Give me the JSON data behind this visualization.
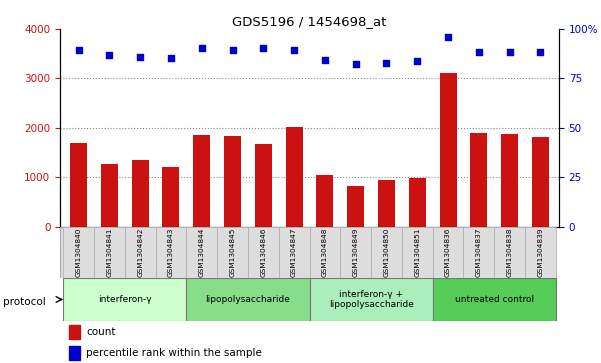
{
  "title": "GDS5196 / 1454698_at",
  "samples": [
    "GSM1304840",
    "GSM1304841",
    "GSM1304842",
    "GSM1304843",
    "GSM1304844",
    "GSM1304845",
    "GSM1304846",
    "GSM1304847",
    "GSM1304848",
    "GSM1304849",
    "GSM1304850",
    "GSM1304851",
    "GSM1304836",
    "GSM1304837",
    "GSM1304838",
    "GSM1304839"
  ],
  "counts": [
    1700,
    1270,
    1360,
    1220,
    1860,
    1840,
    1680,
    2010,
    1040,
    830,
    950,
    990,
    3110,
    1900,
    1880,
    1820
  ],
  "percentile_values": [
    3580,
    3480,
    3430,
    3420,
    3620,
    3580,
    3620,
    3580,
    3380,
    3300,
    3320,
    3350,
    3840,
    3540,
    3540,
    3540
  ],
  "bar_color": "#cc1111",
  "dot_color": "#0000cc",
  "groups": [
    {
      "label": "interferon-γ",
      "start": 0,
      "end": 4,
      "color": "#ccffcc"
    },
    {
      "label": "lipopolysaccharide",
      "start": 4,
      "end": 8,
      "color": "#88dd88"
    },
    {
      "label": "interferon-γ +\nlipopolysaccharide",
      "start": 8,
      "end": 12,
      "color": "#aaeebb"
    },
    {
      "label": "untreated control",
      "start": 12,
      "end": 16,
      "color": "#55cc55"
    }
  ],
  "ylim_left": [
    0,
    4000
  ],
  "ylim_right": [
    0,
    100
  ],
  "yticks_left": [
    0,
    1000,
    2000,
    3000,
    4000
  ],
  "yticks_right": [
    0,
    25,
    50,
    75,
    100
  ],
  "background_color": "#ffffff",
  "grid_color": "#888888",
  "tick_label_color_left": "#cc1111",
  "tick_label_color_right": "#0000cc",
  "protocol_label": "protocol",
  "legend_count_label": "count",
  "legend_percentile_label": "percentile rank within the sample",
  "sample_box_color": "#dddddd",
  "sample_box_edge_color": "#aaaaaa"
}
